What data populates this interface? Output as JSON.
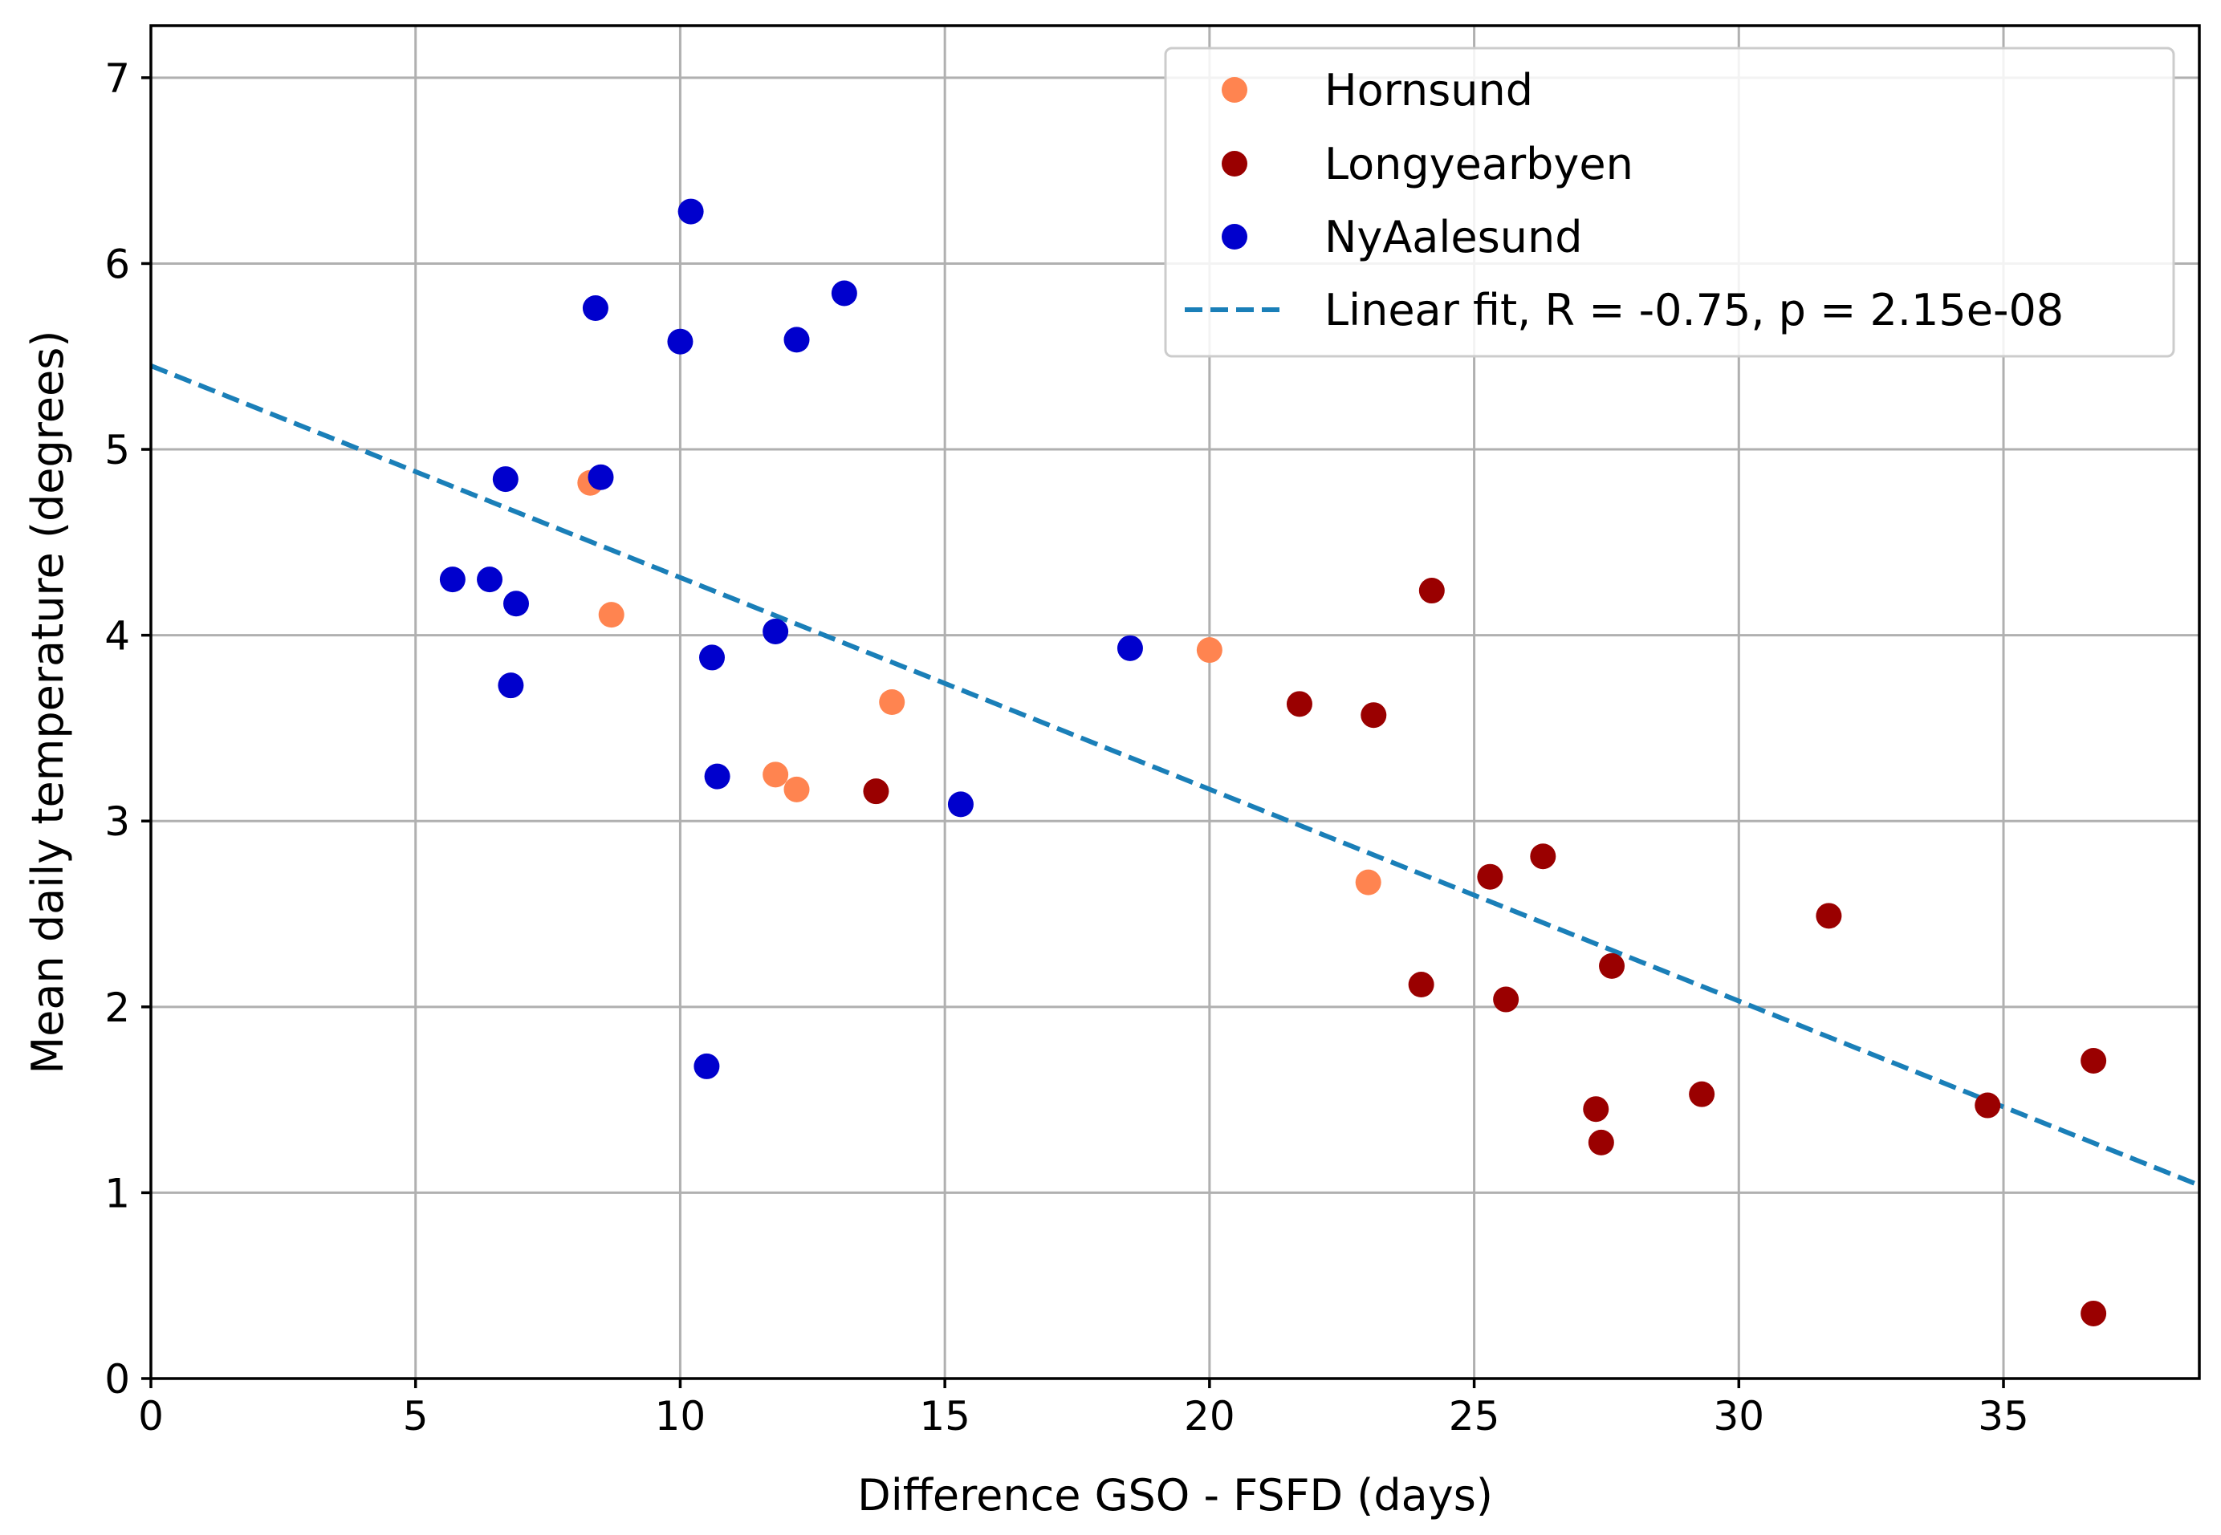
{
  "chart_data": {
    "type": "scatter",
    "title": "",
    "xlabel": "Difference GSO - FSFD (days)",
    "ylabel": "Mean daily temperature (degrees)",
    "xlim": [
      0,
      38.7
    ],
    "ylim": [
      0,
      7.28
    ],
    "xticks": [
      0,
      5,
      10,
      15,
      20,
      25,
      30,
      35
    ],
    "yticks": [
      0,
      1,
      2,
      3,
      4,
      5,
      6,
      7
    ],
    "grid": true,
    "legend_position": "top-right",
    "series": [
      {
        "name": "Hornsund",
        "color": "#ff8450",
        "points": [
          [
            8.3,
            4.82
          ],
          [
            8.7,
            4.11
          ],
          [
            11.8,
            3.25
          ],
          [
            12.2,
            3.17
          ],
          [
            14.0,
            3.64
          ],
          [
            20.0,
            3.92
          ],
          [
            23.0,
            2.67
          ]
        ]
      },
      {
        "name": "Longyearbyen",
        "color": "#9a0000",
        "points": [
          [
            13.7,
            3.16
          ],
          [
            21.7,
            3.63
          ],
          [
            23.1,
            3.57
          ],
          [
            24.2,
            4.24
          ],
          [
            24.0,
            2.12
          ],
          [
            25.3,
            2.7
          ],
          [
            25.6,
            2.04
          ],
          [
            26.3,
            2.81
          ],
          [
            27.3,
            1.45
          ],
          [
            27.4,
            1.27
          ],
          [
            27.6,
            2.22
          ],
          [
            29.3,
            1.53
          ],
          [
            31.7,
            2.49
          ],
          [
            34.7,
            1.47
          ],
          [
            36.7,
            1.71
          ],
          [
            36.7,
            0.35
          ]
        ]
      },
      {
        "name": "NyAalesund",
        "color": "#0000cd",
        "points": [
          [
            5.7,
            4.3
          ],
          [
            6.4,
            4.3
          ],
          [
            6.7,
            4.84
          ],
          [
            6.8,
            3.73
          ],
          [
            6.9,
            4.17
          ],
          [
            8.4,
            5.76
          ],
          [
            8.5,
            4.85
          ],
          [
            10.0,
            5.58
          ],
          [
            10.2,
            6.28
          ],
          [
            10.5,
            1.68
          ],
          [
            10.6,
            3.88
          ],
          [
            10.7,
            3.24
          ],
          [
            11.8,
            4.02
          ],
          [
            12.2,
            5.59
          ],
          [
            13.1,
            5.84
          ],
          [
            15.3,
            3.09
          ],
          [
            18.5,
            3.93
          ]
        ]
      }
    ],
    "fit_line": {
      "name": "Linear fit, R = -0.75, p = 2.15e-08",
      "color": "#1a7fb8",
      "style": "dashed",
      "x": [
        0,
        38.7
      ],
      "y": [
        5.45,
        1.04
      ]
    }
  }
}
